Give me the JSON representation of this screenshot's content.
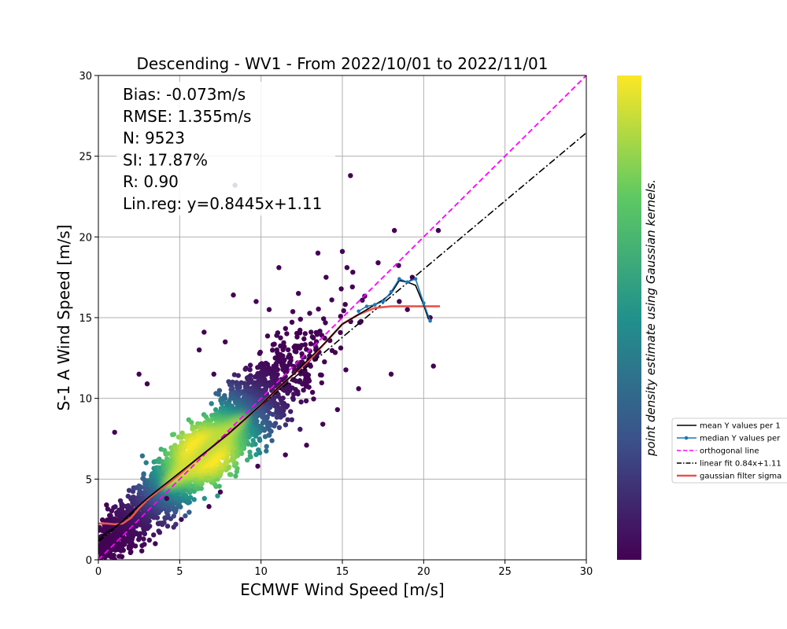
{
  "chart_data": {
    "type": "scatter",
    "title": "Descending - WV1 - From 2022/10/01 to 2022/11/01",
    "xlabel": "ECMWF Wind Speed [m/s]",
    "ylabel": "S-1 A Wind Speed [m/s]",
    "xlim": [
      0,
      30
    ],
    "ylim": [
      0,
      30
    ],
    "xticks": [
      0,
      5,
      10,
      15,
      20,
      25,
      30
    ],
    "yticks": [
      0,
      5,
      10,
      15,
      20,
      25,
      30
    ],
    "grid": true,
    "stats": [
      "Bias: -0.073m/s",
      "RMSE: 1.355m/s",
      "N: 9523",
      "SI: 17.87%",
      "R: 0.90",
      "Lin.reg: y=0.8445x+1.11"
    ],
    "colorbar_label": "point density estimate using Gaussian kernels.",
    "colormap": [
      "#440154",
      "#3b528b",
      "#21918c",
      "#5ec962",
      "#fde725"
    ],
    "legend": {
      "position": "right, outside the plot",
      "entries": [
        {
          "label": "mean Y values per 1",
          "color": "#000000",
          "style": "solid"
        },
        {
          "label": "median Y values per",
          "color": "#1f77b4",
          "style": "solid-marker"
        },
        {
          "label": "orthogonal line",
          "color": "#ff00ff",
          "style": "dashed"
        },
        {
          "label": "linear fit 0.84x+1.11",
          "color": "#000000",
          "style": "dashdot"
        },
        {
          "label": "gaussian filter sigma",
          "color": "#e8554e",
          "style": "solid"
        }
      ]
    },
    "orthogonal_line": {
      "x": [
        0,
        30
      ],
      "y": [
        0,
        30
      ]
    },
    "linear_fit": {
      "x": [
        0,
        30
      ],
      "y": [
        1.11,
        26.45
      ]
    },
    "mean_curve": {
      "x": [
        0,
        0.5,
        1,
        1.5,
        2,
        3,
        4,
        5,
        6,
        7,
        8,
        9,
        10,
        11,
        12,
        13,
        14,
        15,
        16,
        17,
        17.5,
        18,
        18.5,
        19,
        19.5,
        20,
        20.3
      ],
      "y": [
        1.2,
        1.7,
        2.0,
        2.4,
        2.9,
        3.8,
        4.6,
        5.4,
        6.2,
        7.0,
        7.8,
        8.7,
        9.6,
        10.6,
        11.5,
        12.5,
        13.5,
        14.6,
        15.2,
        15.8,
        16.1,
        16.5,
        17.3,
        17.2,
        17.0,
        15.8,
        14.9
      ]
    },
    "median_curve": {
      "x": [
        16,
        16.5,
        17,
        17.5,
        18,
        18.5,
        19,
        19.5,
        20,
        20.4
      ],
      "y": [
        15.4,
        15.7,
        15.8,
        16.0,
        16.6,
        17.4,
        17.2,
        17.4,
        15.9,
        14.8
      ]
    },
    "gaussian_curve": {
      "x": [
        0,
        0.5,
        1,
        1.5,
        2,
        2.5,
        3,
        4,
        5,
        6,
        7,
        8,
        9,
        10,
        11,
        12,
        13,
        14,
        15,
        16,
        17,
        18,
        19,
        20,
        21
      ],
      "y": [
        2.25,
        2.25,
        2.2,
        2.25,
        2.6,
        3.2,
        3.7,
        4.5,
        5.3,
        6.2,
        7.0,
        7.8,
        8.7,
        9.6,
        10.6,
        11.5,
        12.4,
        13.5,
        14.6,
        15.2,
        15.6,
        15.7,
        15.7,
        15.7,
        15.7
      ]
    },
    "outliers": [
      {
        "x": 8.4,
        "y": 23.2
      },
      {
        "x": 15.5,
        "y": 23.8
      },
      {
        "x": 18.2,
        "y": 20.4
      },
      {
        "x": 19.3,
        "y": 17.5
      },
      {
        "x": 20.6,
        "y": 12.0
      },
      {
        "x": 20.9,
        "y": 20.4
      },
      {
        "x": 6.5,
        "y": 14.1
      },
      {
        "x": 3.0,
        "y": 10.9
      },
      {
        "x": 2.5,
        "y": 11.5
      },
      {
        "x": 1.0,
        "y": 7.9
      },
      {
        "x": 0.5,
        "y": 3.4
      },
      {
        "x": 11.1,
        "y": 18.1
      },
      {
        "x": 13.5,
        "y": 19.0
      },
      {
        "x": 15.0,
        "y": 19.1
      },
      {
        "x": 14.0,
        "y": 17.5
      },
      {
        "x": 17.2,
        "y": 18.4
      },
      {
        "x": 9.7,
        "y": 16.0
      },
      {
        "x": 7.1,
        "y": 11.5
      },
      {
        "x": 8.3,
        "y": 16.4
      },
      {
        "x": 4.2,
        "y": 3.8
      },
      {
        "x": 5.1,
        "y": 2.5
      },
      {
        "x": 6.8,
        "y": 3.3
      },
      {
        "x": 7.5,
        "y": 4.2
      },
      {
        "x": 9.8,
        "y": 5.8
      },
      {
        "x": 12.8,
        "y": 7.1
      },
      {
        "x": 14.7,
        "y": 9.3
      },
      {
        "x": 16.0,
        "y": 10.6
      },
      {
        "x": 18.0,
        "y": 11.5
      },
      {
        "x": 6.2,
        "y": 13.0
      },
      {
        "x": 7.8,
        "y": 13.5
      },
      {
        "x": 10.5,
        "y": 15.5
      },
      {
        "x": 12.3,
        "y": 16.5
      },
      {
        "x": 18.5,
        "y": 16.0
      },
      {
        "x": 19.0,
        "y": 15.5
      },
      {
        "x": 20.4,
        "y": 15.0
      },
      {
        "x": 2.0,
        "y": 0.5
      },
      {
        "x": 1.5,
        "y": 1.5
      },
      {
        "x": 3.5,
        "y": 1.0
      },
      {
        "x": 11.5,
        "y": 6.5
      },
      {
        "x": 13.8,
        "y": 8.4
      }
    ]
  }
}
